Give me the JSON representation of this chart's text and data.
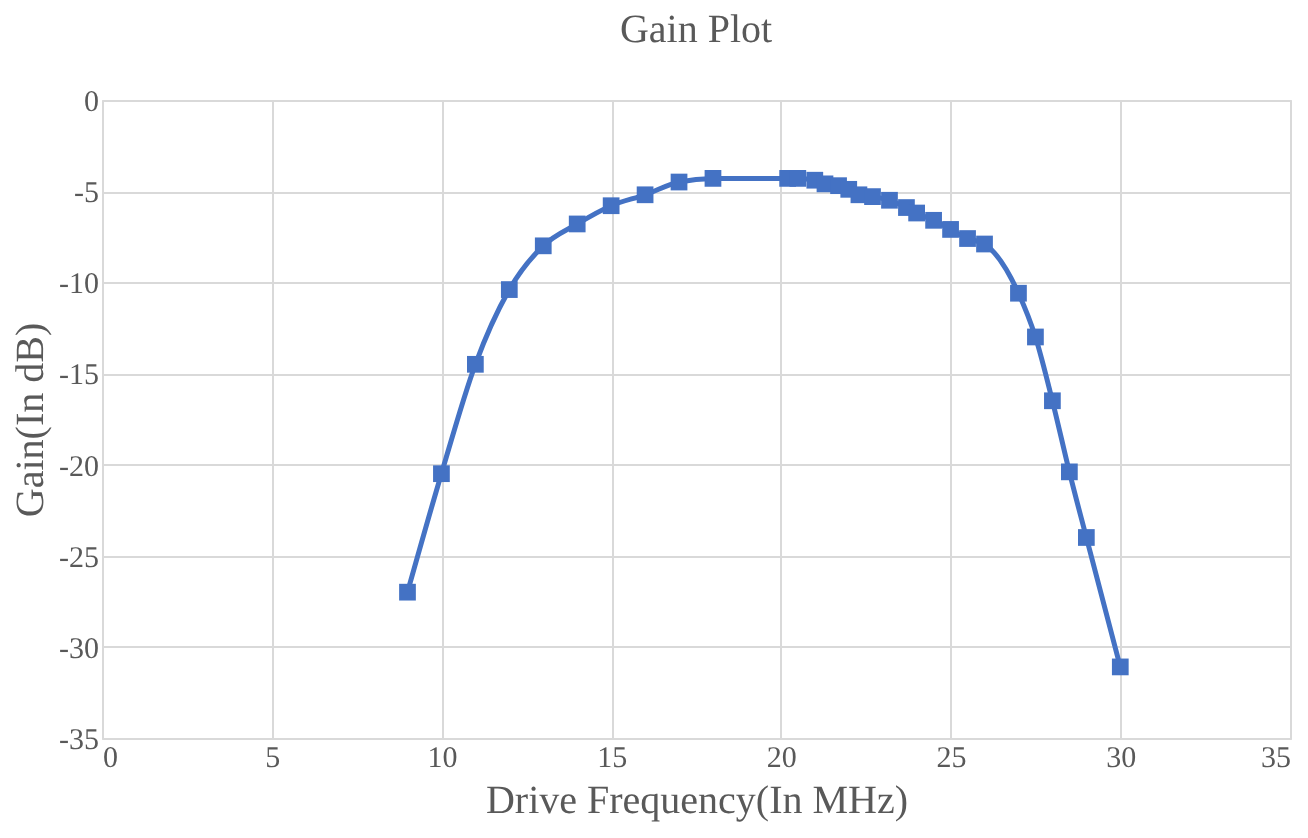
{
  "chart_data": {
    "type": "line",
    "title": "Gain Plot",
    "xlabel": "Drive Frequency(In MHz)",
    "ylabel": "Gain(In dB)",
    "x": [
      9,
      10,
      11,
      12,
      13,
      14,
      15,
      16,
      17,
      18,
      20.2,
      20.5,
      21,
      21.3,
      21.7,
      22,
      22.3,
      22.7,
      23.2,
      23.7,
      24,
      24.5,
      25,
      25.5,
      26,
      27,
      27.5,
      28,
      28.5,
      29,
      30
    ],
    "series": [
      {
        "color": "#4472c4",
        "values": [
          -27,
          -20.5,
          -14.5,
          -10.4,
          -8,
          -6.8,
          -5.8,
          -5.2,
          -4.5,
          -4.3,
          -4.3,
          -4.3,
          -4.4,
          -4.6,
          -4.7,
          -4.9,
          -5.2,
          -5.3,
          -5.5,
          -5.9,
          -6.2,
          -6.6,
          -7.1,
          -7.6,
          -7.9,
          -10.6,
          -13,
          -16.5,
          -20.4,
          -24,
          -31.1
        ]
      }
    ],
    "xlim": [
      0,
      35
    ],
    "xticks": [
      0,
      5,
      10,
      15,
      20,
      25,
      30,
      35
    ],
    "ylim": [
      -35,
      0
    ],
    "yticks": [
      -35,
      -30,
      -25,
      -20,
      -15,
      -10,
      -5,
      0
    ],
    "grid": true,
    "marker": "square",
    "line_style": "solid"
  }
}
